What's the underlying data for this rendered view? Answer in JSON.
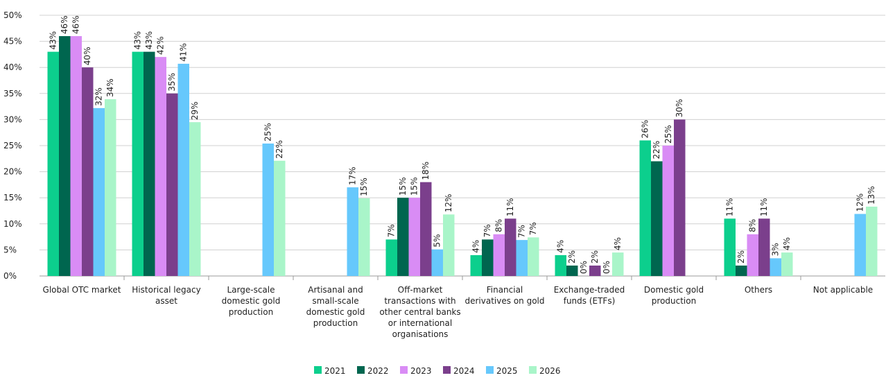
{
  "chart_data": {
    "type": "bar",
    "categories": [
      "Global OTC market",
      "Historical legacy\nasset",
      "Large-scale\ndomestic gold\nproduction",
      "Artisanal and\nsmall-scale\ndomestic gold\nproduction",
      "Off-market\ntransactions with\nother central banks\nor international\norganisations",
      "Financial\nderivatives on gold",
      "Exchange-traded\nfunds (ETFs)",
      "Domestic gold\nproduction",
      "Others",
      "Not applicable"
    ],
    "series": [
      {
        "name": "2021",
        "color": "#0ccf8d",
        "values": [
          43,
          43,
          null,
          null,
          7,
          4,
          4,
          26,
          11,
          null
        ],
        "value_labels": [
          "43%",
          "43%",
          null,
          null,
          "7%",
          "4%",
          "4%",
          "26%",
          "11%",
          null
        ]
      },
      {
        "name": "2022",
        "color": "#00664f",
        "values": [
          46,
          43,
          null,
          null,
          15,
          7,
          2,
          22,
          2,
          null
        ],
        "value_labels": [
          "46%",
          "43%",
          null,
          null,
          "15%",
          "7%",
          "2%",
          "22%",
          "2%",
          null
        ]
      },
      {
        "name": "2023",
        "color": "#d98cf5",
        "values": [
          46,
          42,
          null,
          null,
          15,
          8,
          0,
          25,
          8,
          null
        ],
        "value_labels": [
          "46%",
          "42%",
          null,
          null,
          "15%",
          "8%",
          "0%",
          "25%",
          "8%",
          null
        ]
      },
      {
        "name": "2024",
        "color": "#7b3f8c",
        "values": [
          40,
          35,
          null,
          null,
          18,
          11,
          2,
          30,
          11,
          null
        ],
        "value_labels": [
          "40%",
          "35%",
          null,
          null,
          "18%",
          "11%",
          "2%",
          "30%",
          "11%",
          null
        ]
      },
      {
        "name": "2025",
        "color": "#66c8fc",
        "values": [
          32.2,
          40.7,
          25.4,
          17,
          5.1,
          6.9,
          0,
          null,
          3.4,
          11.9
        ],
        "value_labels": [
          "32%",
          "41%",
          "25%",
          "17%",
          "5%",
          "7%",
          "0%",
          null,
          "3%",
          "12%"
        ]
      },
      {
        "name": "2026",
        "color": "#a9f5c9",
        "values": [
          33.9,
          29.5,
          22.1,
          14.9,
          11.8,
          7.4,
          4.5,
          null,
          4.5,
          13.3
        ],
        "value_labels": [
          "34%",
          "29%",
          "22%",
          "15%",
          "12%",
          "7%",
          "4%",
          null,
          "4%",
          "13%"
        ]
      }
    ],
    "ylim": [
      0,
      50
    ],
    "yticks": [
      {
        "value": 0,
        "label": "0%"
      },
      {
        "value": 5,
        "label": "5%"
      },
      {
        "value": 10,
        "label": "10%"
      },
      {
        "value": 15,
        "label": "15%"
      },
      {
        "value": 20,
        "label": "20%"
      },
      {
        "value": 25,
        "label": "25%"
      },
      {
        "value": 30,
        "label": "30%"
      },
      {
        "value": 35,
        "label": "35%"
      },
      {
        "value": 40,
        "label": "40%"
      },
      {
        "value": 45,
        "label": "45%"
      },
      {
        "value": 50,
        "label": "50%"
      }
    ],
    "grid": true,
    "legend": "bottom"
  }
}
